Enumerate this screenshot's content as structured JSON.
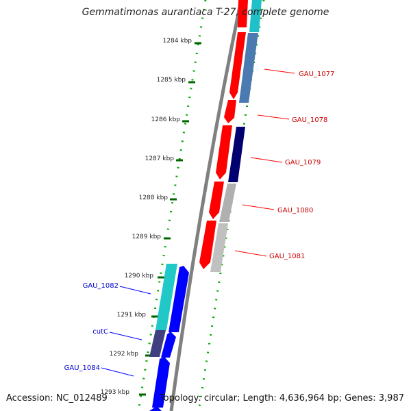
{
  "title": "Gemmatimonas aurantiaca T-27, complete genome",
  "footer": {
    "accession": "Accession: NC_012489",
    "topology": "Topology: circular; Length: 4,636,964 bp; Genes: 3,987"
  },
  "colors": {
    "forward_gene": "#ff0000",
    "reverse_gene": "#0000ff",
    "backbone": "#808080",
    "tick": "#007700",
    "forward_label": "#cc0000",
    "reverse_label": "#0000cc"
  },
  "position_labels": [
    "1284 kbp",
    "1285 kbp",
    "1286 kbp",
    "1287 kbp",
    "1288 kbp",
    "1289 kbp",
    "1290 kbp",
    "1291 kbp",
    "1292 kbp",
    "1293 kbp"
  ],
  "forward_gene_labels": [
    "GAU_1077",
    "GAU_1078",
    "GAU_1079",
    "GAU_1080",
    "GAU_1081"
  ],
  "reverse_gene_labels": [
    "GAU_1082",
    "cutC",
    "GAU_1084"
  ]
}
